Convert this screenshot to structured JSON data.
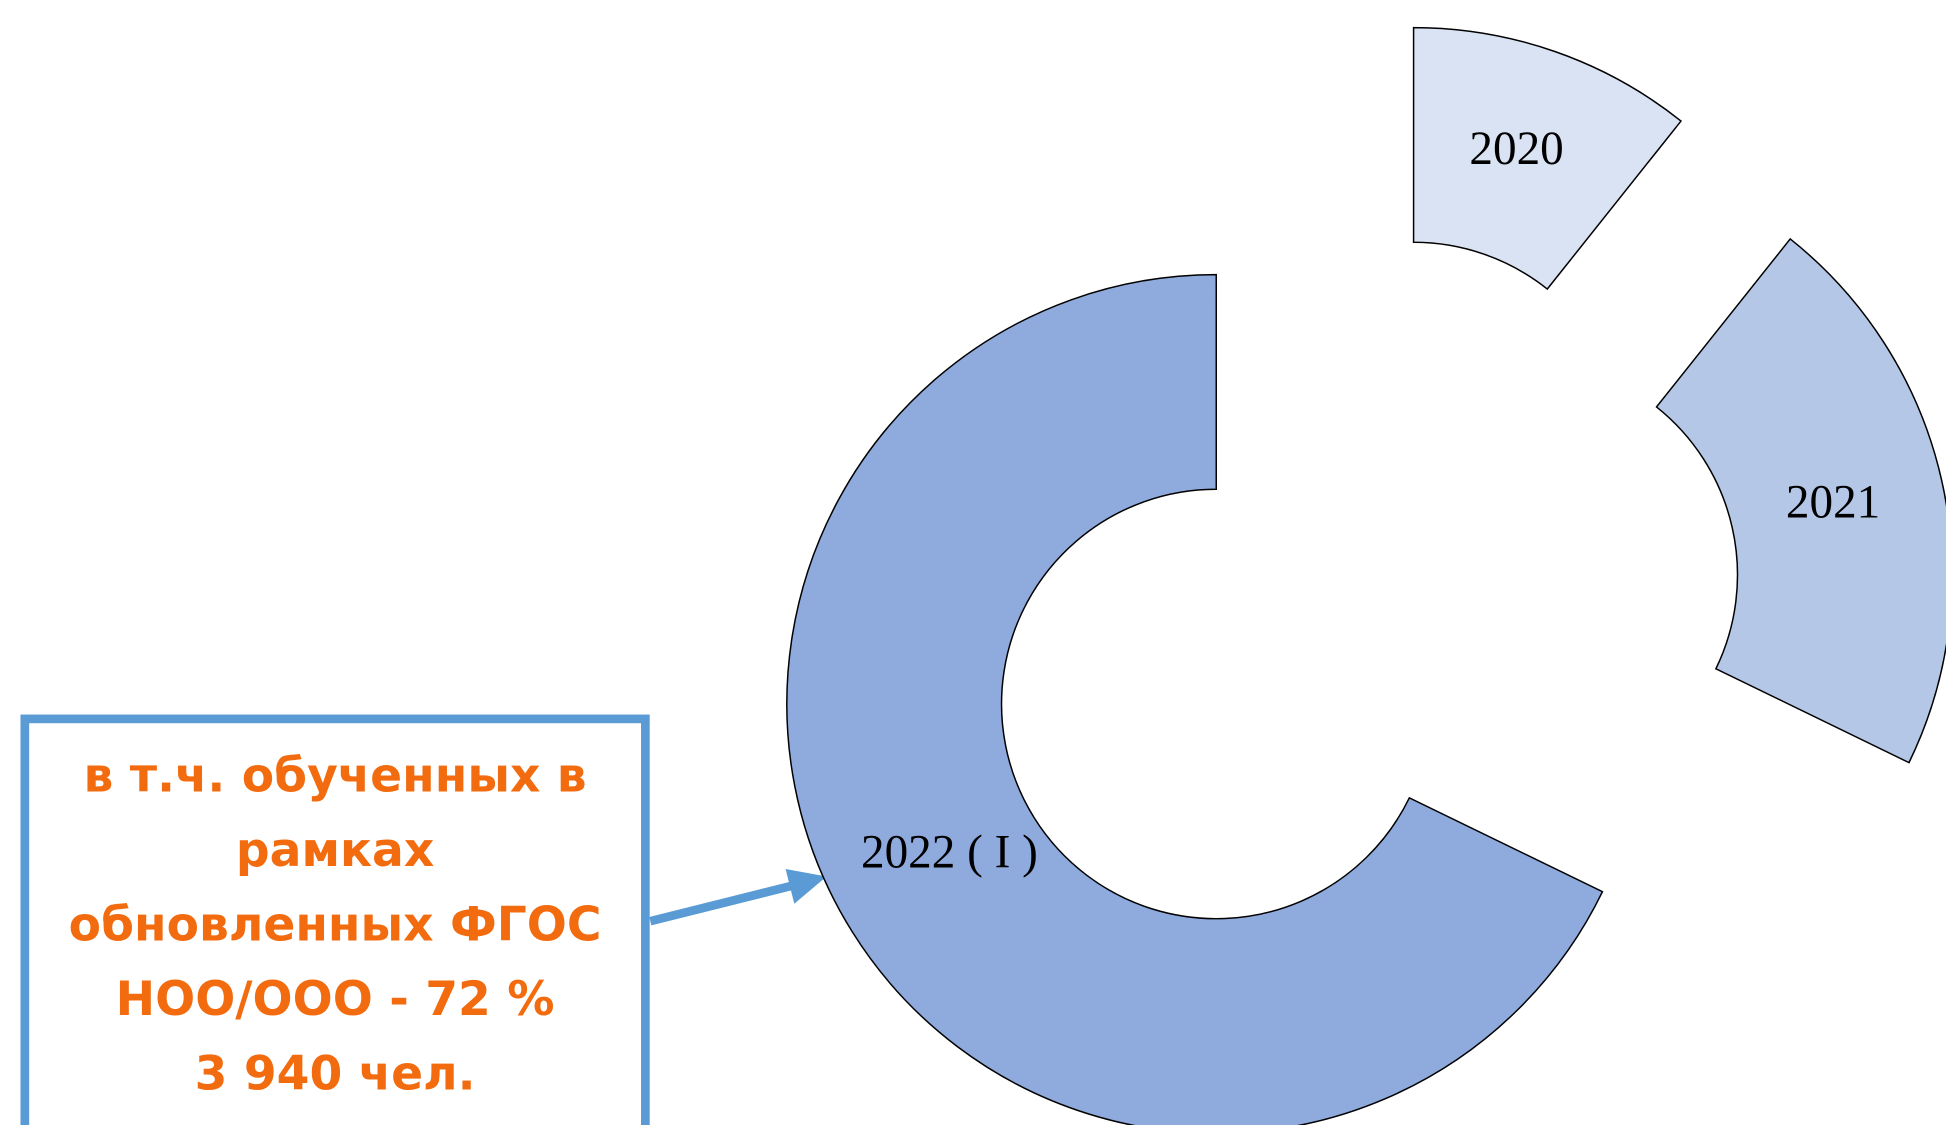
{
  "chart_data": {
    "type": "donut",
    "categories": [
      "2020",
      "2021",
      "2022 ( I )"
    ],
    "values": [
      10.7,
      21.5,
      67.8
    ],
    "colors": [
      "#dae3f3",
      "#b4c7e7",
      "#8faadc"
    ],
    "annotation": [
      "в т.ч. обученных в",
      "рамках",
      "обновленных ФГОС",
      "НОО/ООО - 72 %",
      "3 940 чел."
    ]
  }
}
